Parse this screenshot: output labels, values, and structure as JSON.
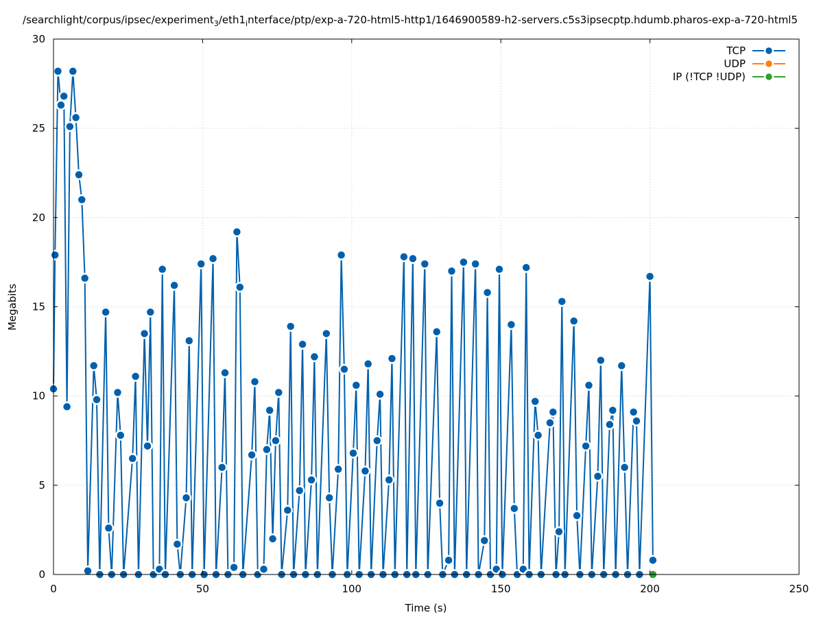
{
  "chart_data": {
    "type": "line",
    "title": "/searchlight/corpus/ipsec/experiment",
    "title_sub": "3",
    "title_mid": "/eth1",
    "title_sub2": "i",
    "title_rest": "nterface/ptp/exp-a-720-html5-http1/1646900589-h2-servers.c5s3ipsecptp.hdumb.pharos-exp-a-720-html5",
    "xlabel": "Time (s)",
    "ylabel": "Megabits",
    "xlim": [
      0,
      250
    ],
    "ylim": [
      0,
      30
    ],
    "x_ticks": [
      "0",
      "50",
      "100",
      "150",
      "200",
      "250"
    ],
    "y_ticks": [
      "0",
      "5",
      "10",
      "15",
      "20",
      "25",
      "30"
    ],
    "grid": true,
    "legend_position": "top-right",
    "series": [
      {
        "name": "TCP",
        "color": "#0060ad",
        "points": [
          [
            0,
            10.4
          ],
          [
            0.5,
            17.9
          ],
          [
            1.5,
            28.2
          ],
          [
            2.5,
            26.3
          ],
          [
            3.5,
            26.8
          ],
          [
            4.5,
            9.4
          ],
          [
            5.5,
            25.1
          ],
          [
            6.5,
            28.2
          ],
          [
            7.5,
            25.6
          ],
          [
            8.5,
            22.4
          ],
          [
            9.5,
            21.0
          ],
          [
            10.5,
            16.6
          ],
          [
            11.5,
            0.2
          ],
          [
            13.5,
            11.7
          ],
          [
            14.5,
            9.8
          ],
          [
            15.5,
            0.0
          ],
          [
            17.5,
            14.7
          ],
          [
            18.5,
            2.6
          ],
          [
            19.5,
            0.0
          ],
          [
            21.5,
            10.2
          ],
          [
            22.5,
            7.8
          ],
          [
            23.5,
            0.0
          ],
          [
            26.5,
            6.5
          ],
          [
            27.5,
            11.1
          ],
          [
            28.5,
            0.0
          ],
          [
            30.5,
            13.5
          ],
          [
            31.5,
            7.2
          ],
          [
            32.5,
            14.7
          ],
          [
            33.5,
            0.0
          ],
          [
            35.5,
            0.3
          ],
          [
            36.5,
            17.1
          ],
          [
            37.5,
            0.0
          ],
          [
            40.5,
            16.2
          ],
          [
            41.5,
            1.7
          ],
          [
            42.5,
            0.0
          ],
          [
            44.5,
            4.3
          ],
          [
            45.5,
            13.1
          ],
          [
            46.5,
            0.0
          ],
          [
            49.5,
            17.4
          ],
          [
            50.5,
            0.0
          ],
          [
            53.5,
            17.7
          ],
          [
            54.5,
            0.0
          ],
          [
            56.5,
            6.0
          ],
          [
            57.5,
            11.3
          ],
          [
            58.5,
            0.0
          ],
          [
            60.5,
            0.4
          ],
          [
            61.5,
            19.2
          ],
          [
            62.5,
            16.1
          ],
          [
            63.5,
            0.0
          ],
          [
            66.5,
            6.7
          ],
          [
            67.5,
            10.8
          ],
          [
            68.5,
            0.0
          ],
          [
            70.5,
            0.3
          ],
          [
            71.5,
            7.0
          ],
          [
            72.5,
            9.2
          ],
          [
            73.5,
            2.0
          ],
          [
            74.5,
            7.5
          ],
          [
            75.5,
            10.2
          ],
          [
            76.5,
            0.0
          ],
          [
            78.5,
            3.6
          ],
          [
            79.5,
            13.9
          ],
          [
            80.5,
            0.0
          ],
          [
            82.5,
            4.7
          ],
          [
            83.5,
            12.9
          ],
          [
            84.5,
            0.0
          ],
          [
            86.5,
            5.3
          ],
          [
            87.5,
            12.2
          ],
          [
            88.5,
            0.0
          ],
          [
            91.5,
            13.5
          ],
          [
            92.5,
            4.3
          ],
          [
            93.5,
            0.0
          ],
          [
            95.5,
            5.9
          ],
          [
            96.5,
            17.9
          ],
          [
            97.5,
            11.5
          ],
          [
            98.5,
            0.0
          ],
          [
            100.5,
            6.8
          ],
          [
            101.5,
            10.6
          ],
          [
            102.5,
            0.0
          ],
          [
            104.5,
            5.8
          ],
          [
            105.5,
            11.8
          ],
          [
            106.5,
            0.0
          ],
          [
            108.5,
            7.5
          ],
          [
            109.5,
            10.1
          ],
          [
            110.5,
            0.0
          ],
          [
            112.5,
            5.3
          ],
          [
            113.5,
            12.1
          ],
          [
            114.5,
            0.0
          ],
          [
            117.5,
            17.8
          ],
          [
            118.5,
            0.0
          ],
          [
            120.5,
            17.7
          ],
          [
            121.5,
            0.0
          ],
          [
            124.5,
            17.4
          ],
          [
            125.5,
            0.0
          ],
          [
            128.5,
            13.6
          ],
          [
            129.5,
            4.0
          ],
          [
            130.5,
            0.0
          ],
          [
            132.5,
            0.8
          ],
          [
            133.5,
            17.0
          ],
          [
            134.5,
            0.0
          ],
          [
            137.5,
            17.5
          ],
          [
            138.5,
            0.0
          ],
          [
            141.5,
            17.4
          ],
          [
            142.5,
            0.0
          ],
          [
            144.5,
            1.9
          ],
          [
            145.5,
            15.8
          ],
          [
            146.5,
            0.0
          ],
          [
            148.5,
            0.3
          ],
          [
            149.5,
            17.1
          ],
          [
            150.5,
            0.0
          ],
          [
            153.5,
            14.0
          ],
          [
            154.5,
            3.7
          ],
          [
            155.5,
            0.0
          ],
          [
            157.5,
            0.3
          ],
          [
            158.5,
            17.2
          ],
          [
            159.5,
            0.0
          ],
          [
            161.5,
            9.7
          ],
          [
            162.5,
            7.8
          ],
          [
            163.5,
            0.0
          ],
          [
            166.5,
            8.5
          ],
          [
            167.5,
            9.1
          ],
          [
            168.5,
            0.0
          ],
          [
            169.5,
            2.4
          ],
          [
            170.5,
            15.3
          ],
          [
            171.5,
            0.0
          ],
          [
            174.5,
            14.2
          ],
          [
            175.5,
            3.3
          ],
          [
            176.5,
            0.0
          ],
          [
            178.5,
            7.2
          ],
          [
            179.5,
            10.6
          ],
          [
            180.5,
            0.0
          ],
          [
            182.5,
            5.5
          ],
          [
            183.5,
            12.0
          ],
          [
            184.5,
            0.0
          ],
          [
            186.5,
            8.4
          ],
          [
            187.5,
            9.2
          ],
          [
            188.5,
            0.0
          ],
          [
            190.5,
            11.7
          ],
          [
            191.5,
            6.0
          ],
          [
            192.5,
            0.0
          ],
          [
            194.5,
            9.1
          ],
          [
            195.5,
            8.6
          ],
          [
            196.5,
            0.0
          ],
          [
            200.0,
            16.7
          ],
          [
            201.0,
            0.8
          ]
        ]
      },
      {
        "name": "UDP",
        "color": "#ff7f0e",
        "points": []
      },
      {
        "name": "IP (!TCP  !UDP)",
        "color": "#2ca02c",
        "points": [
          [
            201.0,
            0.0
          ]
        ]
      }
    ]
  }
}
